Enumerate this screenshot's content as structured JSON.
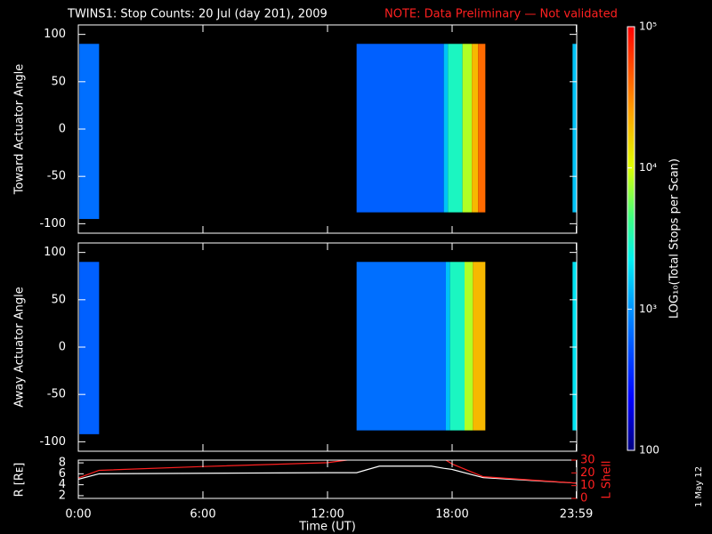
{
  "chart_data": {
    "type": "spectrogram",
    "title": "TWINS1: Stop Counts: 20 Jul (day 201), 2009",
    "note": "NOTE: Data Preliminary — Not validated",
    "date_stamp": "1 May 12",
    "xlabel": "Time (UT)",
    "xlim": [
      0,
      24
    ],
    "xticks": [
      {
        "value": 0,
        "label": "0:00"
      },
      {
        "value": 6,
        "label": "6:00"
      },
      {
        "value": 12,
        "label": "12:00"
      },
      {
        "value": 18,
        "label": "18:00"
      },
      {
        "value": 23.98,
        "label": "23:59"
      }
    ],
    "colorbar": {
      "label": "LOG₁₀(Total Stops per Scan)",
      "lim": [
        100,
        100000
      ],
      "log": true,
      "ticks": [
        {
          "value": 100000,
          "label": "10⁵"
        },
        {
          "value": 10000,
          "label": "10⁴"
        },
        {
          "value": 1000,
          "label": "10³"
        },
        100
      ]
    },
    "panels": [
      {
        "ylabel": "Toward Actuator Angle",
        "ylim": [
          -110,
          110
        ],
        "yticks": [
          -100,
          -50,
          0,
          50,
          100
        ],
        "bands": [
          {
            "x": [
              0.05,
              1.0
            ],
            "y": [
              -95,
              90
            ],
            "value": 700
          },
          {
            "x": [
              13.4,
              17.6
            ],
            "y": [
              -88,
              90
            ],
            "value": 600
          },
          {
            "x": [
              17.6,
              17.8
            ],
            "y": [
              -88,
              90
            ],
            "value": 1500
          },
          {
            "x": [
              17.8,
              18.5
            ],
            "y": [
              -88,
              90
            ],
            "value": 3000
          },
          {
            "x": [
              18.5,
              18.95
            ],
            "y": [
              -88,
              90
            ],
            "value": 8000
          },
          {
            "x": [
              18.95,
              19.25
            ],
            "y": [
              -88,
              90
            ],
            "value": 20000
          },
          {
            "x": [
              19.25,
              19.6
            ],
            "y": [
              -88,
              90
            ],
            "value": 40000
          },
          {
            "x": [
              23.8,
              24
            ],
            "y": [
              -88,
              90
            ],
            "value": 1500
          }
        ]
      },
      {
        "ylabel": "Away Actuator Angle",
        "ylim": [
          -110,
          110
        ],
        "yticks": [
          -100,
          -50,
          0,
          50,
          100
        ],
        "bands": [
          {
            "x": [
              0.05,
              1.0
            ],
            "y": [
              -92,
              90
            ],
            "value": 600
          },
          {
            "x": [
              13.4,
              17.7
            ],
            "y": [
              -88,
              90
            ],
            "value": 700
          },
          {
            "x": [
              17.7,
              17.9
            ],
            "y": [
              -88,
              90
            ],
            "value": 1500
          },
          {
            "x": [
              17.9,
              18.6
            ],
            "y": [
              -88,
              90
            ],
            "value": 3000
          },
          {
            "x": [
              18.6,
              19.0
            ],
            "y": [
              -88,
              90
            ],
            "value": 8000
          },
          {
            "x": [
              19.0,
              19.6
            ],
            "y": [
              -88,
              90
            ],
            "value": 20000
          },
          {
            "x": [
              23.8,
              24
            ],
            "y": [
              -88,
              90
            ],
            "value": 2000
          }
        ]
      }
    ],
    "line_panel": {
      "type": "line",
      "ylabel": "R [Rᴇ]",
      "ylim": [
        1.5,
        8.5
      ],
      "yticks": [
        2,
        4,
        6,
        8
      ],
      "y2label": "L Shell",
      "y2lim": [
        0,
        30
      ],
      "y2ticks": [
        0,
        10,
        20,
        30
      ],
      "x": [
        0,
        1,
        6,
        12,
        13.4,
        14.5,
        17,
        17.6,
        18,
        19.5,
        24
      ],
      "series": [
        {
          "name": "R",
          "color": "#ffffff",
          "values": [
            5.0,
            6.0,
            6.1,
            6.2,
            6.2,
            7.4,
            7.4,
            7.0,
            6.8,
            5.3,
            4.3
          ]
        },
        {
          "name": "L Shell",
          "color": "#ff2020",
          "axis": "y2",
          "values": [
            16,
            22,
            25,
            28,
            31,
            null,
            null,
            31,
            27,
            17,
            12
          ]
        }
      ]
    }
  }
}
